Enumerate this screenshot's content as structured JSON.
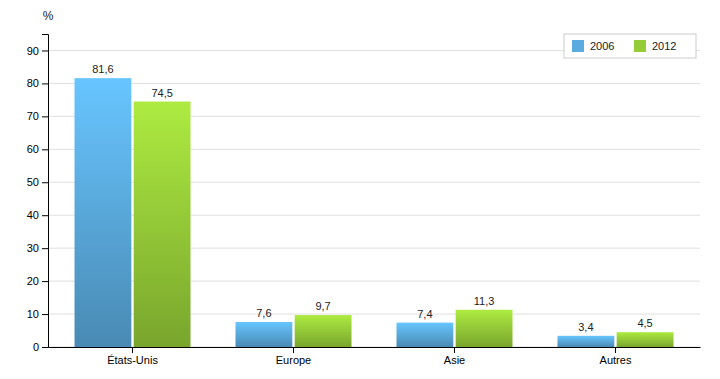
{
  "chart_data": {
    "type": "bar",
    "categories": [
      "États-Unis",
      "Europe",
      "Asie",
      "Autres"
    ],
    "series": [
      {
        "name": "2006",
        "color": "#5aabdf",
        "values": [
          81.6,
          7.6,
          7.4,
          3.4
        ],
        "value_labels": [
          "81,6",
          "7,6",
          "7,4",
          "3,4"
        ]
      },
      {
        "name": "2012",
        "color": "#96cc38",
        "values": [
          74.5,
          9.7,
          11.3,
          4.5
        ],
        "value_labels": [
          "74,5",
          "9,7",
          "11,3",
          "4,5"
        ]
      }
    ],
    "ylabel": "%",
    "ylim": [
      0,
      95
    ],
    "yticks": [
      0,
      10,
      20,
      30,
      40,
      50,
      60,
      70,
      80,
      90
    ],
    "grid": true,
    "legend": "upper right",
    "data_labels": true
  }
}
